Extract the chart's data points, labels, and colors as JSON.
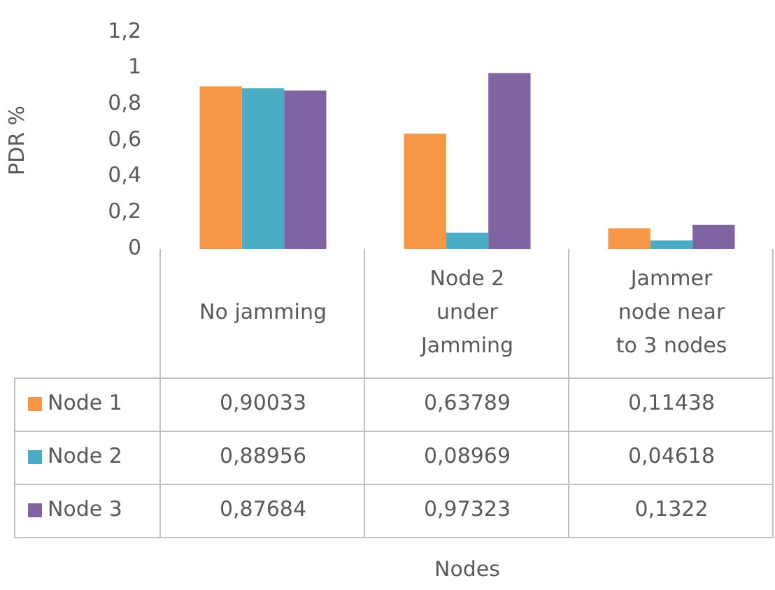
{
  "chart_data": {
    "type": "bar",
    "annotations": [
      "Nodes"
    ],
    "ylabel": "PDR %",
    "categories": [
      "No jamming",
      "Node 2 under Jamming",
      "Jammer node near to 3 nodes"
    ],
    "series": [
      {
        "name": "Node 1",
        "color": "#f79646",
        "values": [
          0.90033,
          0.63789,
          0.11438
        ],
        "value_labels": [
          "0,90033",
          "0,63789",
          "0,11438"
        ]
      },
      {
        "name": "Node 2",
        "color": "#4bacc6",
        "values": [
          0.88956,
          0.08969,
          0.04618
        ],
        "value_labels": [
          "0,88956",
          "0,08969",
          "0,04618"
        ]
      },
      {
        "name": "Node 3",
        "color": "#8064a2",
        "values": [
          0.87684,
          0.97323,
          0.1322
        ],
        "value_labels": [
          "0,87684",
          "0,97323",
          "0,1322"
        ]
      }
    ],
    "ylim": [
      0,
      1.2
    ],
    "yticks": [
      {
        "value": 0,
        "label": "0"
      },
      {
        "value": 0.2,
        "label": "0,2"
      },
      {
        "value": 0.4,
        "label": "0,4"
      },
      {
        "value": 0.6,
        "label": "0,6"
      },
      {
        "value": 0.8,
        "label": "0,8"
      },
      {
        "value": 1,
        "label": "1"
      },
      {
        "value": 1.2,
        "label": "1,2"
      }
    ],
    "grid": false,
    "legend": "bottom"
  }
}
